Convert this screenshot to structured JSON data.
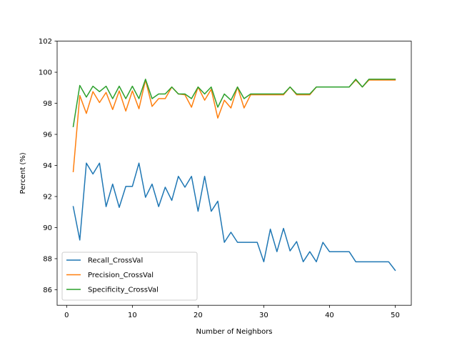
{
  "chart_data": {
    "type": "line",
    "title": "",
    "xlabel": "Number of Neighbors",
    "ylabel": "Percent (%)",
    "xlim": [
      -1.45,
      52.45
    ],
    "ylim": [
      85,
      102
    ],
    "xticks": [
      0,
      10,
      20,
      30,
      40,
      50
    ],
    "yticks": [
      86,
      88,
      90,
      92,
      94,
      96,
      98,
      100,
      102
    ],
    "grid": false,
    "legend_position": "lower-left",
    "x": [
      1,
      2,
      3,
      4,
      5,
      6,
      7,
      8,
      9,
      10,
      11,
      12,
      13,
      14,
      15,
      16,
      17,
      18,
      19,
      20,
      21,
      22,
      23,
      24,
      25,
      26,
      27,
      28,
      29,
      30,
      31,
      32,
      33,
      34,
      35,
      36,
      37,
      38,
      39,
      40,
      41,
      42,
      43,
      44,
      45,
      46,
      47,
      48,
      49,
      50
    ],
    "series": [
      {
        "name": "Recall_CrossVal",
        "color": "#1f77b4",
        "values": [
          91.35,
          89.2,
          94.15,
          93.45,
          94.15,
          91.35,
          92.8,
          91.3,
          92.65,
          92.65,
          94.15,
          91.95,
          92.8,
          91.35,
          92.6,
          91.75,
          93.3,
          92.6,
          93.3,
          91.05,
          93.3,
          91.05,
          91.7,
          89.05,
          89.7,
          89.05,
          89.05,
          89.05,
          89.05,
          87.8,
          89.9,
          88.45,
          89.95,
          88.5,
          89.1,
          87.8,
          88.45,
          87.8,
          89.05,
          88.45,
          88.45,
          88.45,
          88.45,
          87.8,
          87.8,
          87.8,
          87.8,
          87.8,
          87.8,
          87.25
        ]
      },
      {
        "name": "Precision_CrossVal",
        "color": "#ff7f0e",
        "values": [
          93.6,
          98.5,
          97.35,
          98.75,
          98.05,
          98.7,
          97.6,
          98.8,
          97.5,
          98.8,
          97.65,
          99.5,
          97.8,
          98.3,
          98.3,
          99.05,
          98.6,
          98.55,
          97.75,
          99.05,
          98.2,
          98.9,
          97.05,
          98.2,
          97.7,
          99.05,
          97.7,
          98.55,
          98.55,
          98.55,
          98.55,
          98.55,
          98.55,
          99.05,
          98.55,
          98.55,
          98.55,
          99.05,
          99.05,
          99.05,
          99.05,
          99.05,
          99.05,
          99.5,
          99.05,
          99.5,
          99.5,
          99.5,
          99.5,
          99.5
        ]
      },
      {
        "name": "Specificity_CrossVal",
        "color": "#2ca02c",
        "values": [
          96.5,
          99.15,
          98.4,
          99.1,
          98.75,
          99.1,
          98.3,
          99.1,
          98.3,
          99.1,
          98.3,
          99.55,
          98.3,
          98.6,
          98.6,
          99.05,
          98.6,
          98.6,
          98.3,
          99.05,
          98.6,
          99.05,
          97.75,
          98.6,
          98.2,
          99.05,
          98.3,
          98.6,
          98.6,
          98.6,
          98.6,
          98.6,
          98.6,
          99.05,
          98.6,
          98.6,
          98.6,
          99.05,
          99.05,
          99.05,
          99.05,
          99.05,
          99.05,
          99.55,
          99.05,
          99.55,
          99.55,
          99.55,
          99.55,
          99.55
        ]
      }
    ]
  }
}
